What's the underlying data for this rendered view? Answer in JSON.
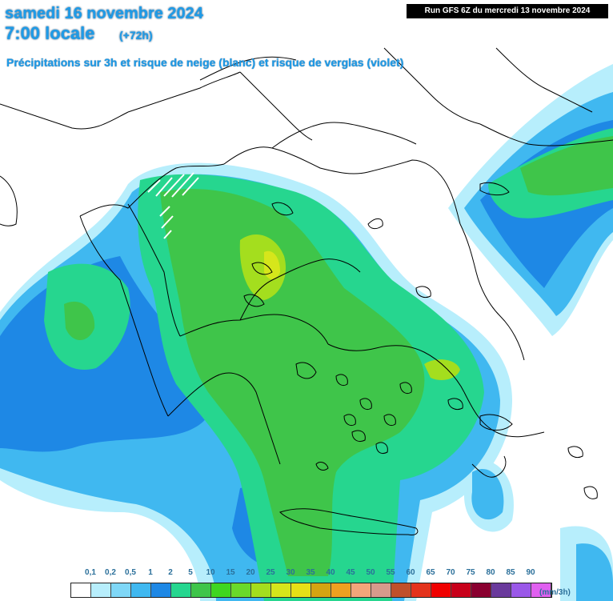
{
  "header": {
    "date": "samedi 16 novembre 2024",
    "time": "7:00 locale",
    "lead": "(+72h)",
    "description": "Précipitations sur 3h et risque de neige (blanc) et risque de verglas (violet)",
    "run": "Run GFS 6Z du mercredi 13 novembre 2024"
  },
  "legend": {
    "unit": "(mm/3h)",
    "labels": [
      "0,1",
      "0,2",
      "0,5",
      "1",
      "2",
      "5",
      "10",
      "15",
      "20",
      "25",
      "30",
      "35",
      "40",
      "45",
      "50",
      "55",
      "60",
      "65",
      "70",
      "75",
      "80",
      "85",
      "90"
    ],
    "colors": [
      "#ffffff",
      "#b7eefc",
      "#7fd7f7",
      "#40b8f0",
      "#1e88e5",
      "#26d68f",
      "#3fc54a",
      "#3fd620",
      "#6ad92b",
      "#a4de1e",
      "#d6e61b",
      "#e6e016",
      "#d4a411",
      "#f0a020",
      "#f4a57a",
      "#d69a8c",
      "#c0502a",
      "#e4331c",
      "#f00000",
      "#c8001a",
      "#8a0030",
      "#6a3a9c",
      "#9a58e8",
      "#e060f0"
    ]
  },
  "colors": {
    "title": "#1e9be8",
    "coastline": "#000000",
    "precip_light": "#b7eefc",
    "precip_blue": "#40b8f0",
    "precip_dark_blue": "#1e88e5",
    "precip_green": "#26d68f",
    "precip_mid_green": "#3fc54a",
    "precip_yellow_green": "#a4de1e",
    "snow_risk": "#ffffff"
  }
}
